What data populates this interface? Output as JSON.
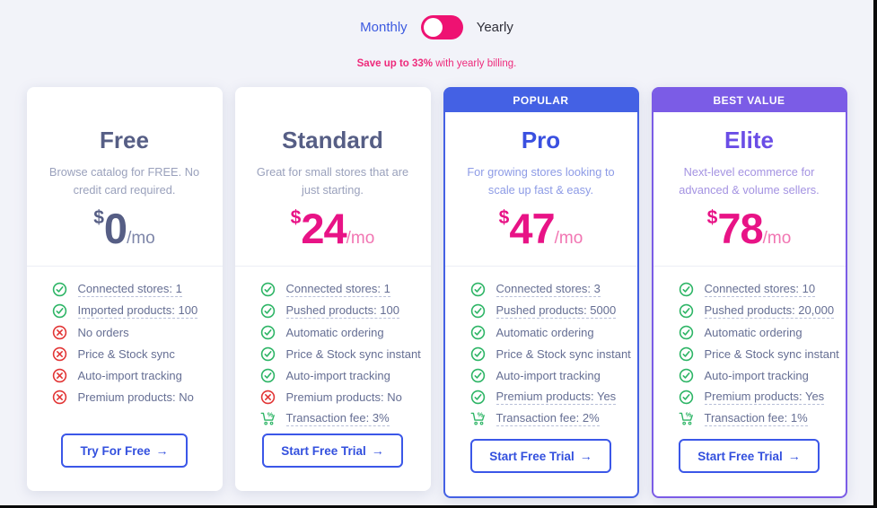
{
  "billing_toggle": {
    "monthly_label": "Monthly",
    "yearly_label": "Yearly",
    "state": "monthly",
    "save_note_bold": "Save up to 33%",
    "save_note_rest": " with yearly billing.",
    "toggle_color": "#ee1272",
    "note_color": "#ee2a7b"
  },
  "page": {
    "background_color": "#f2f3f9",
    "button_blue": "#3b57e8",
    "check_green": "#2eb566",
    "cross_red": "#e23636"
  },
  "plans": [
    {
      "name": "Free",
      "badge": "",
      "description": "Browse catalog for FREE. No credit card required.",
      "currency": "$",
      "price": "0",
      "period": "/mo",
      "cta_label": "Try For Free",
      "cta_arrow": "→",
      "colors": {
        "title": "#565e85",
        "description": "#9aa1bc",
        "price": "#565e85",
        "period": "#7d85a8"
      },
      "features": [
        {
          "icon": "check",
          "text": "Connected stores: 1",
          "underline": true
        },
        {
          "icon": "check",
          "text": "Imported products: 100",
          "underline": true
        },
        {
          "icon": "cross",
          "text": "No orders",
          "underline": false
        },
        {
          "icon": "cross",
          "text": "Price & Stock sync",
          "underline": false
        },
        {
          "icon": "cross",
          "text": "Auto-import tracking",
          "underline": false
        },
        {
          "icon": "cross",
          "text": "Premium products: No",
          "underline": false
        }
      ]
    },
    {
      "name": "Standard",
      "badge": "",
      "description": "Great for small stores that are just starting.",
      "currency": "$",
      "price": "24",
      "period": "/mo",
      "cta_label": "Start Free Trial",
      "cta_arrow": "→",
      "colors": {
        "title": "#565e85",
        "description": "#9aa1bc",
        "price": "#e81386",
        "period": "#f175b2"
      },
      "features": [
        {
          "icon": "check",
          "text": "Connected stores: 1",
          "underline": true
        },
        {
          "icon": "check",
          "text": "Pushed products: 100",
          "underline": true
        },
        {
          "icon": "check",
          "text": "Automatic ordering",
          "underline": false
        },
        {
          "icon": "check",
          "text": "Price & Stock sync instant",
          "underline": false
        },
        {
          "icon": "check",
          "text": "Auto-import tracking",
          "underline": false
        },
        {
          "icon": "cross",
          "text": "Premium products: No",
          "underline": false
        },
        {
          "icon": "cart",
          "text": "Transaction fee: 3%",
          "underline": true
        }
      ]
    },
    {
      "name": "Pro",
      "badge": "POPULAR",
      "description": "For growing stores looking to scale up fast & easy.",
      "currency": "$",
      "price": "47",
      "period": "/mo",
      "cta_label": "Start Free Trial",
      "cta_arrow": "→",
      "colors": {
        "accent": "#4461e4",
        "title": "#3a50e0",
        "description": "#8d9be6",
        "price": "#e81386",
        "period": "#f175b2"
      },
      "features": [
        {
          "icon": "check",
          "text": "Connected stores: 3",
          "underline": true
        },
        {
          "icon": "check",
          "text": "Pushed products: 5000",
          "underline": true
        },
        {
          "icon": "check",
          "text": "Automatic ordering",
          "underline": false
        },
        {
          "icon": "check",
          "text": "Price & Stock sync instant",
          "underline": false
        },
        {
          "icon": "check",
          "text": "Auto-import tracking",
          "underline": false
        },
        {
          "icon": "check",
          "text": "Premium products: Yes",
          "underline": true
        },
        {
          "icon": "cart",
          "text": "Transaction fee: 2%",
          "underline": true
        }
      ]
    },
    {
      "name": "Elite",
      "badge": "BEST VALUE",
      "description": "Next-level ecommerce for advanced & volume sellers.",
      "currency": "$",
      "price": "78",
      "period": "/mo",
      "cta_label": "Start Free Trial",
      "cta_arrow": "→",
      "colors": {
        "accent": "#7b5ce6",
        "title": "#6a4de6",
        "description": "#a493e2",
        "price": "#e81386",
        "period": "#f175b2"
      },
      "features": [
        {
          "icon": "check",
          "text": "Connected stores: 10",
          "underline": true
        },
        {
          "icon": "check",
          "text": "Pushed products: 20,000",
          "underline": true
        },
        {
          "icon": "check",
          "text": "Automatic ordering",
          "underline": false
        },
        {
          "icon": "check",
          "text": "Price & Stock sync instant",
          "underline": false
        },
        {
          "icon": "check",
          "text": "Auto-import tracking",
          "underline": false
        },
        {
          "icon": "check",
          "text": "Premium products: Yes",
          "underline": true
        },
        {
          "icon": "cart",
          "text": "Transaction fee: 1%",
          "underline": true
        }
      ]
    }
  ]
}
